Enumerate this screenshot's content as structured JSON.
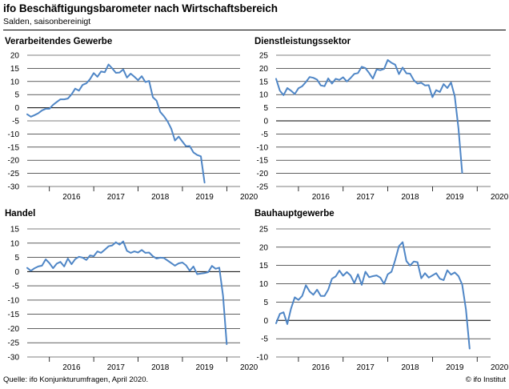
{
  "figure": {
    "title": "ifo Beschäftigungsbarometer nach Wirtschaftsbereich",
    "subtitle": "Salden, saisonbereinigt",
    "source": "Quelle: ifo Konjunkturumfragen, April 2020.",
    "copyright": "© ifo Institut"
  },
  "colors": {
    "line": "#4f86c6",
    "grid": "#000000",
    "text": "#000000"
  },
  "chart_data": [
    {
      "type": "line",
      "title": "Verarbeitendes Gewerbe",
      "xlabel": "",
      "ylabel": "",
      "x_start": 2015.5,
      "x_step": 0.0833,
      "xlim": [
        2015.5,
        2020.3
      ],
      "ylim": [
        -30,
        20
      ],
      "yticks": [
        20,
        15,
        10,
        5,
        0,
        -5,
        -10,
        -15,
        -20,
        -25,
        -30
      ],
      "xticks": [
        "2016",
        "2017",
        "2018",
        "2019",
        "2020"
      ],
      "grid": true,
      "values": [
        -2.5,
        -3.4,
        -2.8,
        -2.1,
        -1.0,
        -0.4,
        -0.4,
        1.1,
        2.2,
        3.2,
        3.2,
        3.5,
        5.1,
        7.3,
        6.5,
        8.7,
        9.3,
        10.9,
        13.2,
        11.8,
        13.8,
        13.5,
        16.5,
        15.0,
        13.3,
        13.4,
        14.6,
        11.5,
        13.0,
        11.8,
        10.5,
        12.0,
        9.8,
        10.2,
        4.0,
        2.7,
        -1.6,
        -3.2,
        -5.2,
        -8.0,
        -12.5,
        -11.0,
        -12.9,
        -14.7,
        -14.6,
        -17.0,
        -18.0,
        -18.5,
        -28.5
      ]
    },
    {
      "type": "line",
      "title": "Dienstleistungssektor",
      "xlabel": "",
      "ylabel": "",
      "x_start": 2015.5,
      "x_step": 0.0833,
      "xlim": [
        2015.5,
        2020.3
      ],
      "ylim": [
        -25,
        25
      ],
      "yticks": [
        25,
        20,
        15,
        10,
        5,
        0,
        -5,
        -10,
        -15,
        -20,
        -25
      ],
      "xticks": [
        "2016",
        "2017",
        "2018",
        "2019",
        "2020"
      ],
      "grid": true,
      "values": [
        16.0,
        11.5,
        9.8,
        12.5,
        11.5,
        10.2,
        12.4,
        13.2,
        14.8,
        16.7,
        16.4,
        15.7,
        13.5,
        13.2,
        16.2,
        14.2,
        16.0,
        15.6,
        16.6,
        15.0,
        16.3,
        17.9,
        18.2,
        20.6,
        20.1,
        18.2,
        16.1,
        19.6,
        19.3,
        19.8,
        23.2,
        22.1,
        21.4,
        17.8,
        20.3,
        18.1,
        18.0,
        15.5,
        14.2,
        14.5,
        13.5,
        13.6,
        9.0,
        11.7,
        11.0,
        14.0,
        12.5,
        14.6,
        9.4,
        -3.0,
        -19.8
      ]
    },
    {
      "type": "line",
      "title": "Handel",
      "xlabel": "",
      "ylabel": "",
      "x_start": 2015.5,
      "x_step": 0.0833,
      "xlim": [
        2015.5,
        2020.3
      ],
      "ylim": [
        -30,
        15
      ],
      "yticks": [
        15,
        10,
        5,
        0,
        -5,
        -10,
        -15,
        -20,
        -25,
        -30
      ],
      "xticks": [
        "2016",
        "2017",
        "2018",
        "2019",
        "2020"
      ],
      "grid": true,
      "values": [
        1.3,
        0.3,
        1.2,
        1.8,
        2.1,
        4.3,
        3.0,
        1.2,
        2.8,
        3.4,
        1.8,
        4.6,
        2.6,
        4.4,
        5.2,
        4.9,
        4.1,
        5.7,
        5.4,
        7.1,
        6.6,
        7.7,
        8.9,
        9.2,
        10.3,
        9.5,
        10.6,
        7.3,
        6.6,
        7.1,
        6.7,
        7.6,
        6.6,
        6.7,
        5.4,
        4.6,
        4.9,
        4.8,
        3.9,
        3.0,
        2.1,
        2.9,
        3.2,
        2.2,
        0.3,
        1.8,
        -0.9,
        -0.7,
        -0.5,
        -0.2,
        2.0,
        1.0,
        1.4,
        -8.5,
        -25.5
      ]
    },
    {
      "type": "line",
      "title": "Bauhauptgewerbe",
      "xlabel": "",
      "ylabel": "",
      "x_start": 2015.5,
      "x_step": 0.0833,
      "xlim": [
        2015.5,
        2020.3
      ],
      "ylim": [
        -10,
        25
      ],
      "yticks": [
        25,
        20,
        15,
        10,
        5,
        0,
        -5,
        -10
      ],
      "xticks": [
        "2016",
        "2017",
        "2018",
        "2019",
        "2020"
      ],
      "grid": true,
      "values": [
        -0.8,
        1.8,
        2.2,
        -1.0,
        3.2,
        6.3,
        5.6,
        6.7,
        9.6,
        7.9,
        7.0,
        8.4,
        6.7,
        6.7,
        8.4,
        11.4,
        12.0,
        13.6,
        12.2,
        13.2,
        12.3,
        10.2,
        12.6,
        9.7,
        13.3,
        11.8,
        12.1,
        12.3,
        11.7,
        10.0,
        12.6,
        13.3,
        16.5,
        20.3,
        21.4,
        16.2,
        15.0,
        16.1,
        15.9,
        11.5,
        12.9,
        11.7,
        12.3,
        12.9,
        11.4,
        11.0,
        13.7,
        12.5,
        13.1,
        12.1,
        9.8,
        3.0,
        -7.7
      ]
    }
  ]
}
